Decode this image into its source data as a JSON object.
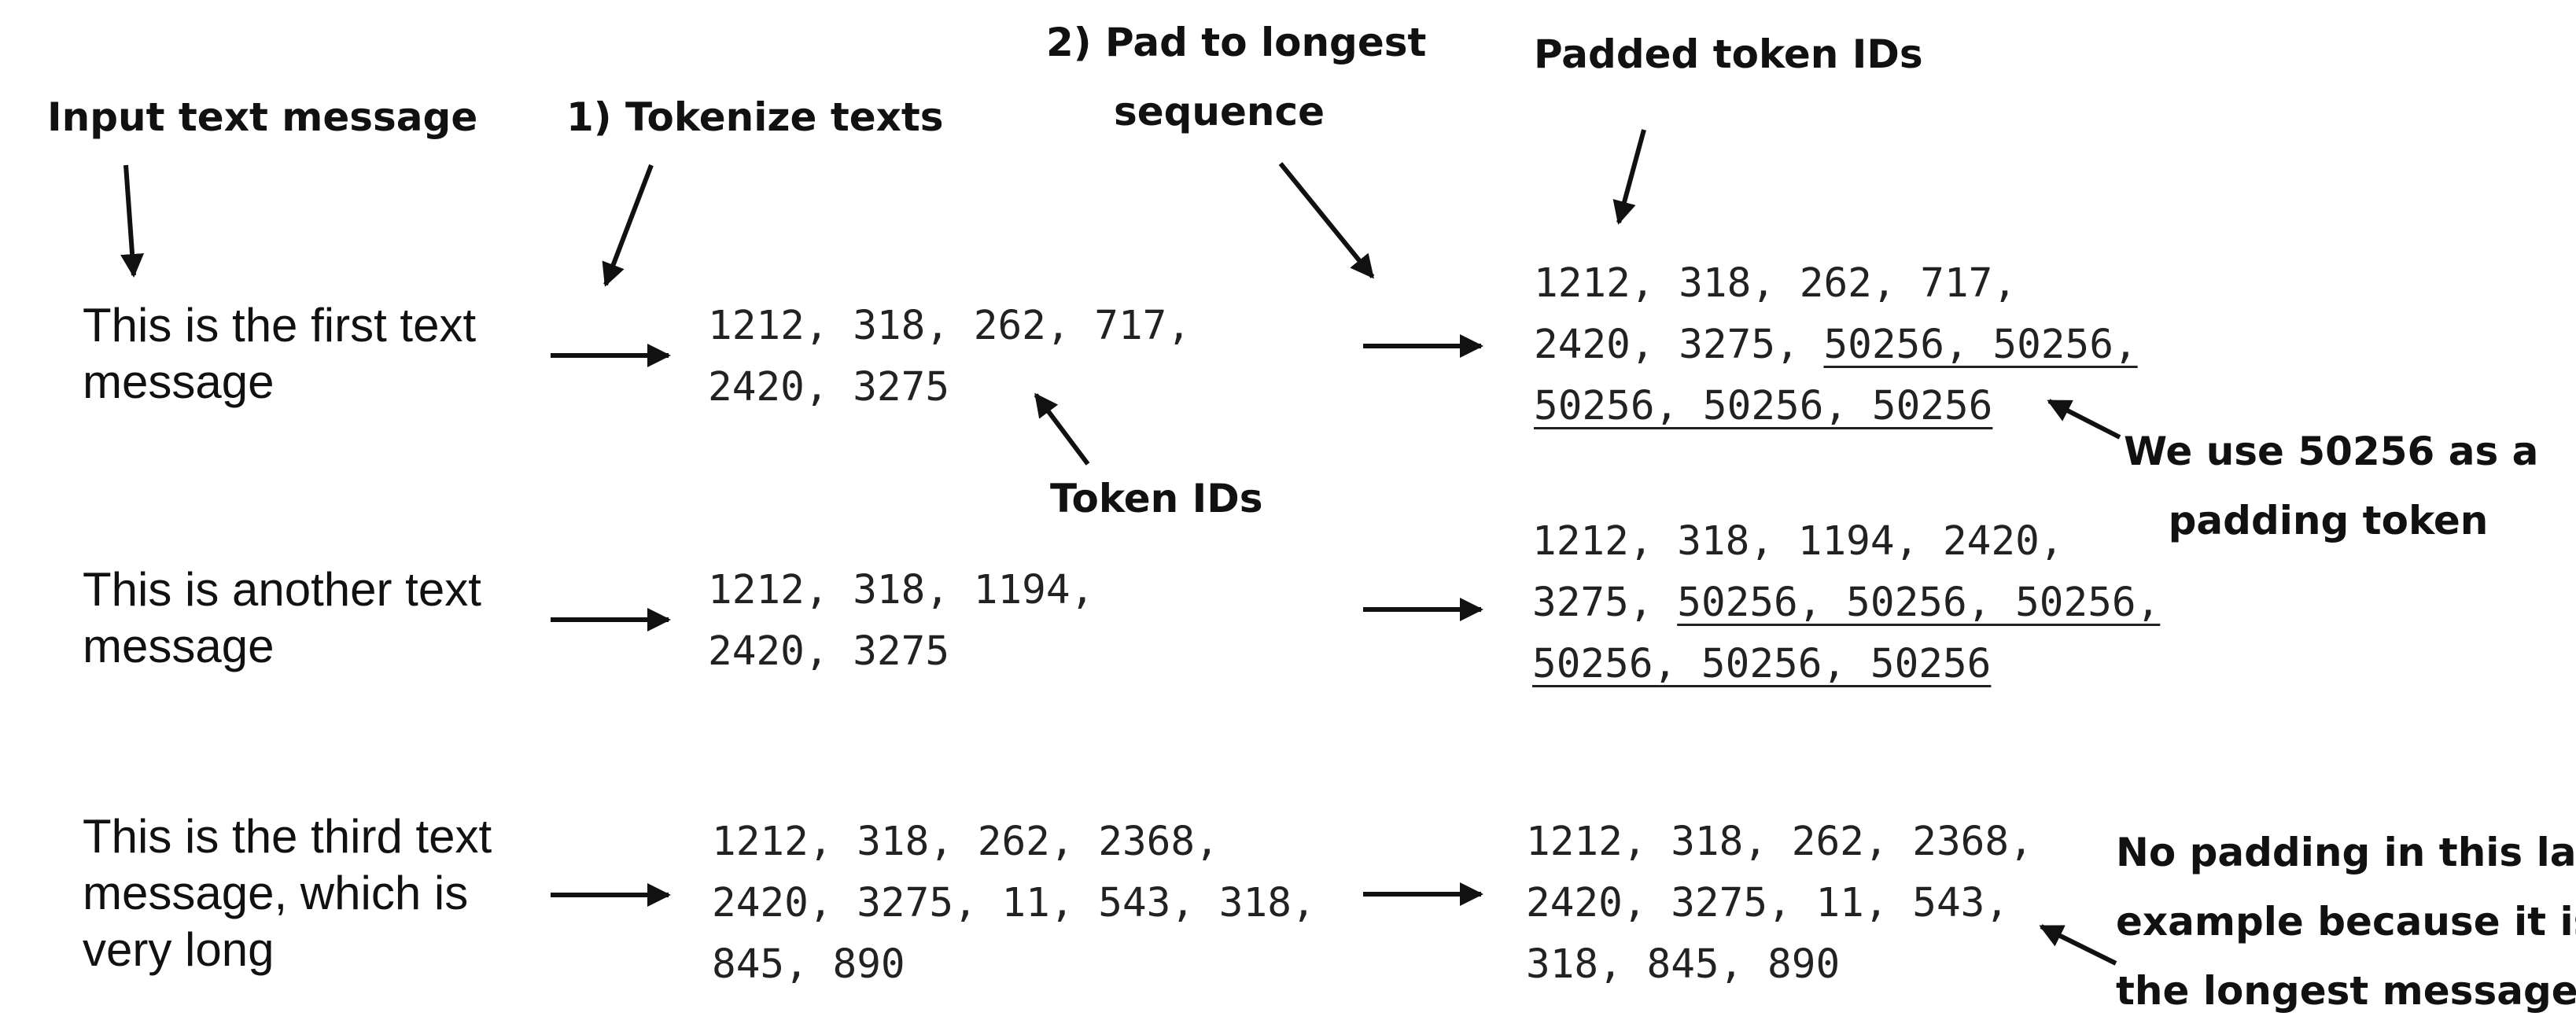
{
  "labels": {
    "input": "Input text message",
    "tokenize": "1) Tokenize texts",
    "pad_line1": "2) Pad to longest",
    "pad_line2": "sequence",
    "padded_ids": "Padded token IDs",
    "token_ids": "Token IDs",
    "use_50256_line1": "We use 50256 as a",
    "use_50256_line2": "padding token",
    "no_padding_line1": "No padding in this last",
    "no_padding_line2": "example because it is",
    "no_padding_line3": "the longest message"
  },
  "rows": [
    {
      "message": [
        "This is the first text",
        "message"
      ],
      "token_ids": [
        "1212, 318, 262, 717,",
        "2420, 3275"
      ],
      "padded": [
        {
          "plain": "1212, 318, 262, 717,",
          "padding": ""
        },
        {
          "plain": "2420, 3275, ",
          "padding": "50256, 50256,"
        },
        {
          "plain": "",
          "padding": "50256, 50256, 50256"
        }
      ]
    },
    {
      "message": [
        "This is another text",
        "message"
      ],
      "token_ids": [
        "1212, 318, 1194,",
        "2420, 3275"
      ],
      "padded": [
        {
          "plain": "1212, 318, 1194, 2420,",
          "padding": ""
        },
        {
          "plain": "3275, ",
          "padding": "50256, 50256, 50256,"
        },
        {
          "plain": "",
          "padding": "50256, 50256, 50256"
        }
      ]
    },
    {
      "message": [
        "This is the third text",
        "message, which is",
        "very long"
      ],
      "token_ids": [
        "1212, 318, 262, 2368,",
        "2420, 3275, 11, 543, 318,",
        "845, 890"
      ],
      "padded": [
        {
          "plain": "1212, 318, 262, 2368,",
          "padding": ""
        },
        {
          "plain": "2420, 3275, 11, 543,",
          "padding": ""
        },
        {
          "plain": "318, 845, 890",
          "padding": ""
        }
      ]
    }
  ]
}
